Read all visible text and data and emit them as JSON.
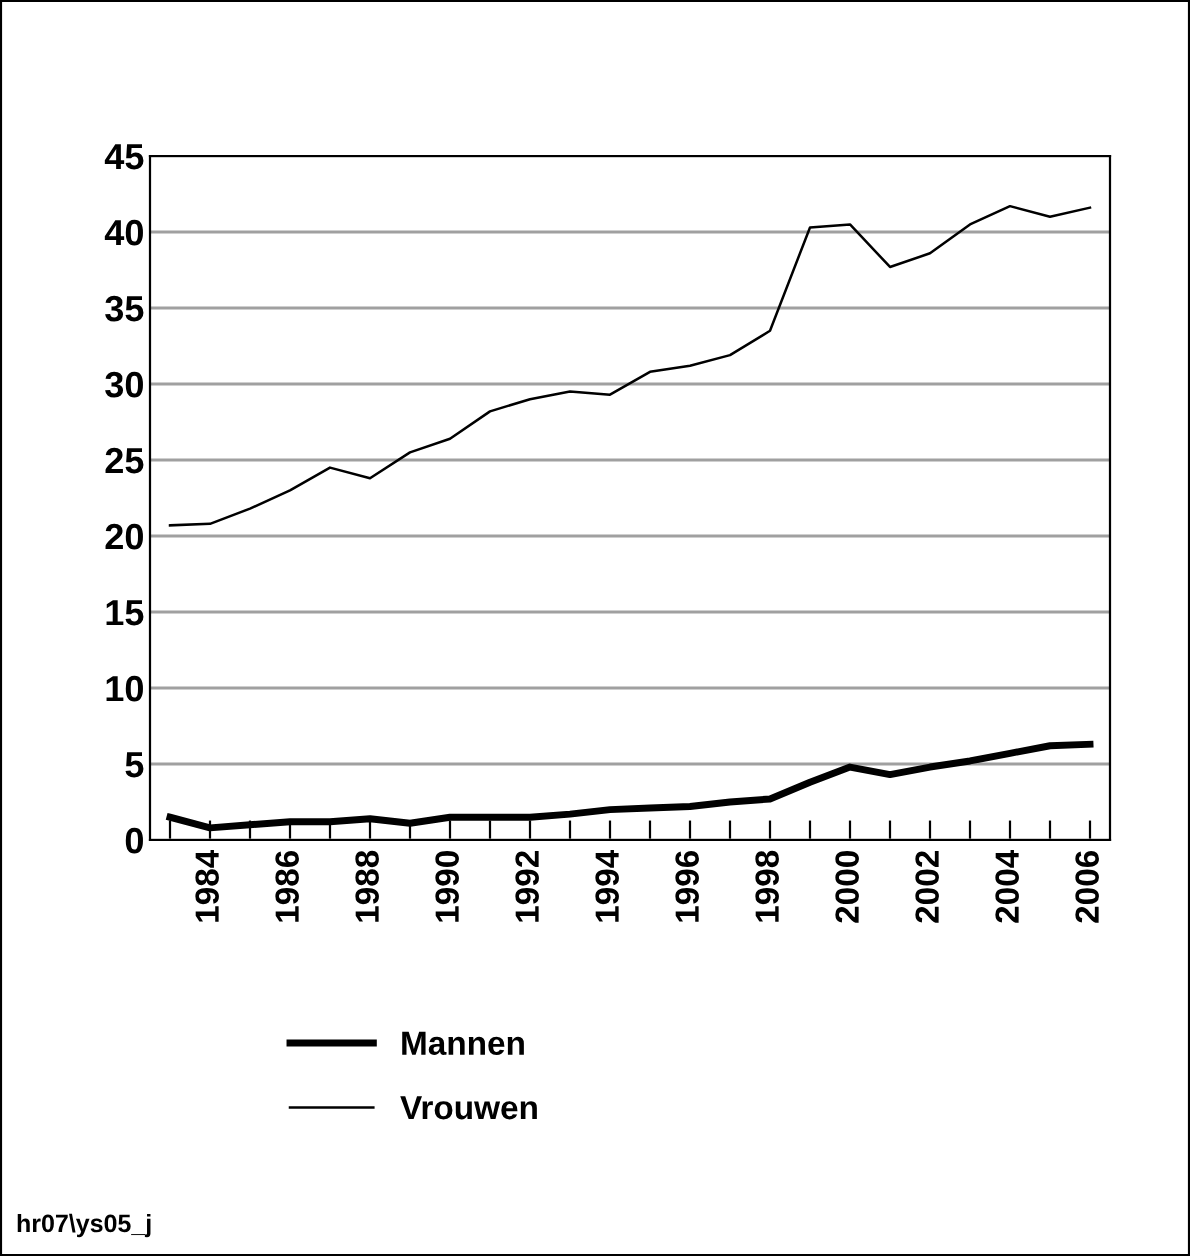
{
  "chart_data": {
    "type": "line",
    "x": [
      1983,
      1984,
      1985,
      1986,
      1987,
      1988,
      1989,
      1990,
      1991,
      1992,
      1993,
      1994,
      1995,
      1996,
      1997,
      1998,
      1999,
      2000,
      2001,
      2002,
      2003,
      2004,
      2005,
      2006
    ],
    "series": [
      {
        "name": "Mannen",
        "color": "#000000",
        "values": [
          1.5,
          0.8,
          1.0,
          1.2,
          1.2,
          1.4,
          1.1,
          1.5,
          1.5,
          1.5,
          1.7,
          2.0,
          2.1,
          2.2,
          2.5,
          2.7,
          3.8,
          4.8,
          4.3,
          4.8,
          5.2,
          5.7,
          6.2,
          6.3
        ]
      },
      {
        "name": "Vrouwen",
        "color": "#000000",
        "values": [
          20.7,
          20.8,
          21.8,
          23.0,
          24.5,
          23.8,
          25.5,
          26.4,
          28.2,
          29.0,
          29.5,
          29.3,
          30.8,
          31.2,
          31.9,
          33.5,
          40.3,
          40.5,
          37.7,
          38.6,
          40.5,
          41.7,
          41.0,
          41.6
        ]
      }
    ],
    "xlim": [
      1982.5,
      2006.5
    ],
    "xticks": [
      {
        "value": 1983,
        "label": null
      },
      1984,
      {
        "value": 1985,
        "label": null
      },
      1986,
      {
        "value": 1987,
        "label": null
      },
      1988,
      {
        "value": 1989,
        "label": null
      },
      1990,
      {
        "value": 1991,
        "label": null
      },
      1992,
      {
        "value": 1993,
        "label": null
      },
      1994,
      {
        "value": 1995,
        "label": null
      },
      1996,
      {
        "value": 1997,
        "label": null
      },
      1998,
      {
        "value": 1999,
        "label": null
      },
      2000,
      {
        "value": 2001,
        "label": null
      },
      2002,
      {
        "value": 2003,
        "label": null
      },
      2004,
      {
        "value": 2005,
        "label": null
      },
      2006
    ],
    "ylim": [
      0,
      45
    ],
    "yticks": [
      0,
      5,
      10,
      15,
      20,
      25,
      30,
      35,
      40,
      45
    ],
    "grid": "y",
    "legend": "bottom left",
    "marker": "none",
    "line_style": "solid",
    "annotations": [
      "hr07\\ys05_j"
    ]
  }
}
